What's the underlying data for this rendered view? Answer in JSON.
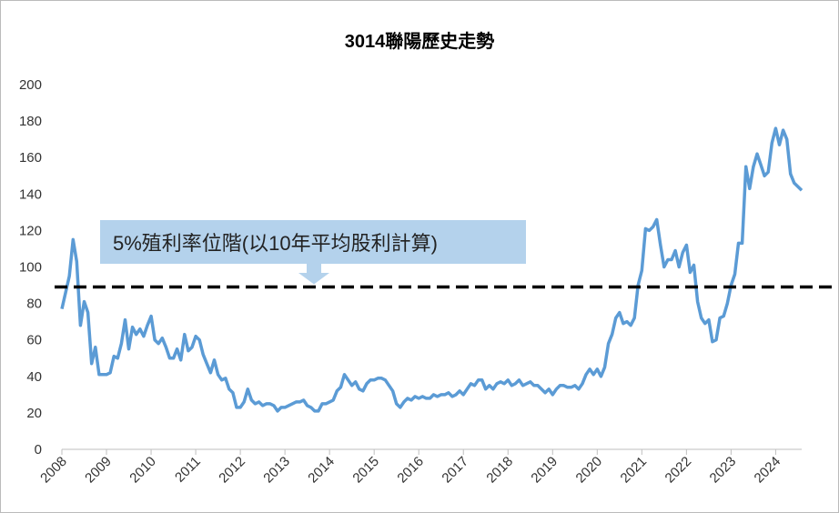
{
  "chart_data": {
    "type": "line",
    "title": "3014聯陽歷史走勢",
    "annotation": "5%殖利率位階(以10年平均股利計算)",
    "hline": 89,
    "categories": [
      "2008",
      null,
      null,
      null,
      null,
      null,
      null,
      null,
      null,
      null,
      null,
      null,
      "2009",
      null,
      null,
      null,
      null,
      null,
      null,
      null,
      null,
      null,
      null,
      null,
      "2010",
      null,
      null,
      null,
      null,
      null,
      null,
      null,
      null,
      null,
      null,
      null,
      "2011",
      null,
      null,
      null,
      null,
      null,
      null,
      null,
      null,
      null,
      null,
      null,
      "2012",
      null,
      null,
      null,
      null,
      null,
      null,
      null,
      null,
      null,
      null,
      null,
      "2013",
      null,
      null,
      null,
      null,
      null,
      null,
      null,
      null,
      null,
      null,
      null,
      "2014",
      null,
      null,
      null,
      null,
      null,
      null,
      null,
      null,
      null,
      null,
      null,
      "2015",
      null,
      null,
      null,
      null,
      null,
      null,
      null,
      null,
      null,
      null,
      null,
      "2016",
      null,
      null,
      null,
      null,
      null,
      null,
      null,
      null,
      null,
      null,
      null,
      "2017",
      null,
      null,
      null,
      null,
      null,
      null,
      null,
      null,
      null,
      null,
      null,
      "2018",
      null,
      null,
      null,
      null,
      null,
      null,
      null,
      null,
      null,
      null,
      null,
      "2019",
      null,
      null,
      null,
      null,
      null,
      null,
      null,
      null,
      null,
      null,
      null,
      "2020",
      null,
      null,
      null,
      null,
      null,
      null,
      null,
      null,
      null,
      null,
      null,
      "2021",
      null,
      null,
      null,
      null,
      null,
      null,
      null,
      null,
      null,
      null,
      null,
      "2022",
      null,
      null,
      null,
      null,
      null,
      null,
      null,
      null,
      null,
      null,
      null,
      "2023",
      null,
      null,
      null,
      null,
      null,
      null,
      null,
      null,
      null,
      null,
      null,
      "2024",
      null,
      null,
      null,
      null,
      null,
      null,
      null
    ],
    "series": [
      {
        "color": "#5b9bd5",
        "values": [
          77,
          86,
          95,
          115,
          103,
          68,
          81,
          75,
          47,
          56,
          41,
          41,
          41,
          42,
          51,
          50,
          58,
          71,
          55,
          67,
          63,
          66,
          62,
          68,
          73,
          60,
          58,
          61,
          56,
          50,
          50,
          55,
          49,
          63,
          54,
          56,
          62,
          60,
          52,
          47,
          42,
          49,
          41,
          38,
          39,
          33,
          31,
          23,
          23,
          26,
          33,
          27,
          25,
          26,
          24,
          25,
          25,
          24,
          21,
          23,
          23,
          24,
          25,
          26,
          26,
          27,
          24,
          23,
          21,
          21,
          25,
          25,
          26,
          27,
          32,
          34,
          41,
          38,
          35,
          37,
          33,
          32,
          36,
          38,
          38,
          39,
          39,
          38,
          35,
          32,
          25,
          23,
          26,
          28,
          27,
          29,
          28,
          29,
          28,
          28,
          30,
          29,
          30,
          30,
          31,
          29,
          30,
          32,
          30,
          33,
          36,
          35,
          38,
          38,
          33,
          35,
          33,
          36,
          37,
          36,
          38,
          35,
          36,
          38,
          35,
          36,
          37,
          35,
          35,
          33,
          31,
          33,
          30,
          33,
          35,
          35,
          34,
          34,
          35,
          33,
          36,
          41,
          44,
          41,
          44,
          40,
          45,
          58,
          63,
          72,
          75,
          69,
          70,
          68,
          72,
          90,
          98,
          121,
          120,
          122,
          126,
          112,
          100,
          104,
          104,
          109,
          100,
          108,
          112,
          97,
          101,
          81,
          72,
          69,
          71,
          59,
          60,
          72,
          73,
          80,
          90,
          96,
          113,
          113,
          155,
          143,
          155,
          162,
          156,
          150,
          152,
          168,
          176,
          167,
          175,
          170,
          151,
          146,
          144,
          142
        ]
      }
    ],
    "ylim": [
      0,
      200
    ],
    "yticks": [
      0,
      20,
      40,
      60,
      80,
      100,
      120,
      140,
      160,
      180,
      200
    ]
  }
}
